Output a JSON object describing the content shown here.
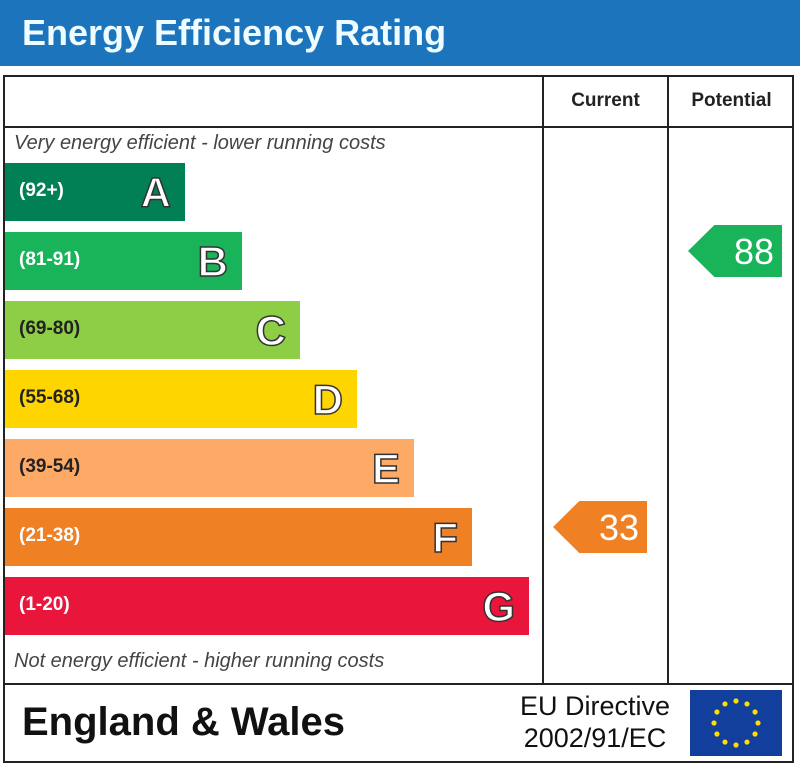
{
  "title": "Energy Efficiency Rating",
  "columns": {
    "current": "Current",
    "potential": "Potential"
  },
  "top_note": "Very energy efficient - lower running costs",
  "bottom_note": "Not energy efficient - higher running costs",
  "footer": {
    "country": "England & Wales",
    "directive_line1": "EU Directive",
    "directive_line2": "2002/91/EC",
    "flag_icon": "eu-flag-icon"
  },
  "chart_data": {
    "type": "bar",
    "bands": [
      {
        "letter": "A",
        "range": "(92+)",
        "color": "#008054"
      },
      {
        "letter": "B",
        "range": "(81-91)",
        "color": "#19b459"
      },
      {
        "letter": "C",
        "range": "(69-80)",
        "color": "#8dce46"
      },
      {
        "letter": "D",
        "range": "(55-68)",
        "color": "#ffd500"
      },
      {
        "letter": "E",
        "range": "(39-54)",
        "color": "#fcaa65"
      },
      {
        "letter": "F",
        "range": "(21-38)",
        "color": "#ef8023"
      },
      {
        "letter": "G",
        "range": "(1-20)",
        "color": "#e9153b"
      }
    ],
    "current": {
      "value": "33",
      "band": "F",
      "color": "#ef8023"
    },
    "potential": {
      "value": "88",
      "band": "B",
      "color": "#19b459"
    }
  }
}
